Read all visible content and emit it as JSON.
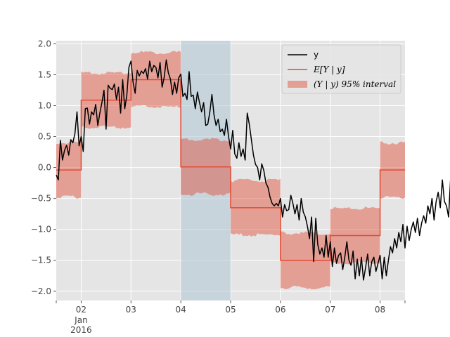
{
  "chart_data": {
    "type": "line",
    "title": "",
    "xlabel": "",
    "ylabel": "",
    "xlim": [
      "2016-01-01T12:00",
      "2016-01-08T12:00"
    ],
    "ylim": [
      -2.15,
      2.05
    ],
    "grid": true,
    "legend_position": "top-right",
    "x_ticks": [
      {
        "x": "2016-01-02",
        "label": "02",
        "sub": [
          "Jan",
          "2016"
        ]
      },
      {
        "x": "2016-01-03",
        "label": "03"
      },
      {
        "x": "2016-01-04",
        "label": "04"
      },
      {
        "x": "2016-01-05",
        "label": "05"
      },
      {
        "x": "2016-01-06",
        "label": "06"
      },
      {
        "x": "2016-01-07",
        "label": "07"
      },
      {
        "x": "2016-01-08",
        "label": "08"
      }
    ],
    "y_ticks": [
      {
        "y": 2.0,
        "label": "2.0"
      },
      {
        "y": 1.5,
        "label": "1.5"
      },
      {
        "y": 1.0,
        "label": "1.0"
      },
      {
        "y": 0.5,
        "label": "0.5"
      },
      {
        "y": 0.0,
        "label": "0.0"
      },
      {
        "y": -0.5,
        "label": "−0.5"
      },
      {
        "y": -1.0,
        "label": "−1.0"
      },
      {
        "y": -1.5,
        "label": "−1.5"
      },
      {
        "y": -2.0,
        "label": "−2.0"
      }
    ],
    "highlight_span": {
      "start": "2016-01-04",
      "end": "2016-01-05",
      "color": "#aec7d6"
    },
    "colors": {
      "y": "#000000",
      "mean": "#e24a33",
      "interval": "#e24a33",
      "axes_bg": "#e5e5e5",
      "grid": "#ffffff"
    },
    "legend": [
      {
        "key": "y",
        "label": "y"
      },
      {
        "key": "mean",
        "label": "E[Y | y]"
      },
      {
        "key": "interval",
        "label": "(Y | y) 95% interval"
      }
    ],
    "mean_steps": [
      {
        "start": "2016-01-01T12:00",
        "end": "2016-01-02",
        "value": -0.04
      },
      {
        "start": "2016-01-02",
        "end": "2016-01-03",
        "value": 1.09
      },
      {
        "start": "2016-01-03",
        "end": "2016-01-04",
        "value": 1.42
      },
      {
        "start": "2016-01-04",
        "end": "2016-01-05",
        "value": 0.01
      },
      {
        "start": "2016-01-05",
        "end": "2016-01-06",
        "value": -0.65
      },
      {
        "start": "2016-01-06",
        "end": "2016-01-07",
        "value": -1.5
      },
      {
        "start": "2016-01-07",
        "end": "2016-01-08",
        "value": -1.1
      },
      {
        "start": "2016-01-08",
        "end": "2016-01-08T12:00",
        "value": -0.04
      }
    ],
    "interval_halfwidth": 0.44,
    "series": [
      {
        "name": "y",
        "start": "2016-01-01T12:00",
        "step_hours": 1,
        "values": [
          -0.12,
          -0.2,
          0.44,
          0.12,
          0.28,
          0.36,
          0.2,
          0.45,
          0.4,
          0.55,
          0.9,
          0.35,
          0.5,
          0.26,
          0.95,
          0.96,
          0.7,
          0.9,
          0.85,
          1.02,
          0.68,
          0.88,
          1.05,
          1.25,
          0.62,
          1.33,
          1.28,
          1.26,
          1.35,
          1.1,
          1.3,
          0.88,
          1.42,
          0.95,
          1.17,
          1.62,
          1.72,
          1.38,
          1.2,
          1.57,
          1.48,
          1.56,
          1.52,
          1.6,
          1.43,
          1.72,
          1.55,
          1.65,
          1.62,
          1.45,
          1.7,
          1.3,
          1.46,
          1.74,
          1.53,
          1.43,
          1.18,
          1.38,
          1.2,
          1.45,
          1.51,
          1.15,
          1.2,
          1.1,
          1.55,
          1.15,
          1.17,
          0.95,
          1.22,
          1.05,
          0.9,
          1.05,
          0.68,
          0.7,
          0.9,
          1.18,
          0.85,
          0.68,
          0.78,
          0.58,
          0.62,
          0.52,
          0.78,
          0.5,
          0.3,
          0.6,
          0.22,
          0.15,
          0.4,
          0.18,
          0.3,
          0.12,
          0.88,
          0.7,
          0.45,
          0.2,
          0.05,
          0.0,
          -0.2,
          0.06,
          -0.05,
          -0.25,
          -0.32,
          -0.48,
          -0.58,
          -0.62,
          -0.58,
          -0.62,
          -0.5,
          -0.8,
          -0.6,
          -0.7,
          -0.68,
          -0.45,
          -0.58,
          -0.75,
          -0.6,
          -0.85,
          -0.5,
          -0.72,
          -0.8,
          -0.95,
          -1.15,
          -0.8,
          -1.52,
          -0.82,
          -1.25,
          -1.4,
          -1.3,
          -1.45,
          -1.1,
          -1.45,
          -1.2,
          -1.6,
          -1.3,
          -1.55,
          -1.42,
          -1.38,
          -1.65,
          -1.45,
          -1.2,
          -1.5,
          -1.58,
          -1.35,
          -1.8,
          -1.48,
          -1.75,
          -1.45,
          -1.82,
          -1.62,
          -1.4,
          -1.75,
          -1.52,
          -1.45,
          -1.68,
          -1.55,
          -1.42,
          -1.8,
          -1.45,
          -1.75,
          -1.5,
          -1.28,
          -1.38,
          -1.15,
          -1.3,
          -1.05,
          -1.2,
          -0.92,
          -1.3,
          -0.95,
          -1.18,
          -1.0,
          -0.88,
          -1.05,
          -0.82,
          -1.1,
          -0.9,
          -0.78,
          -0.9,
          -0.62,
          -0.75,
          -0.5,
          -0.85,
          -0.55,
          -0.4,
          -0.65,
          -0.2,
          -0.55,
          -0.62,
          -0.8,
          -0.15,
          -0.35,
          -0.2,
          -0.05,
          0.22,
          -0.2,
          0.06
        ]
      }
    ]
  }
}
